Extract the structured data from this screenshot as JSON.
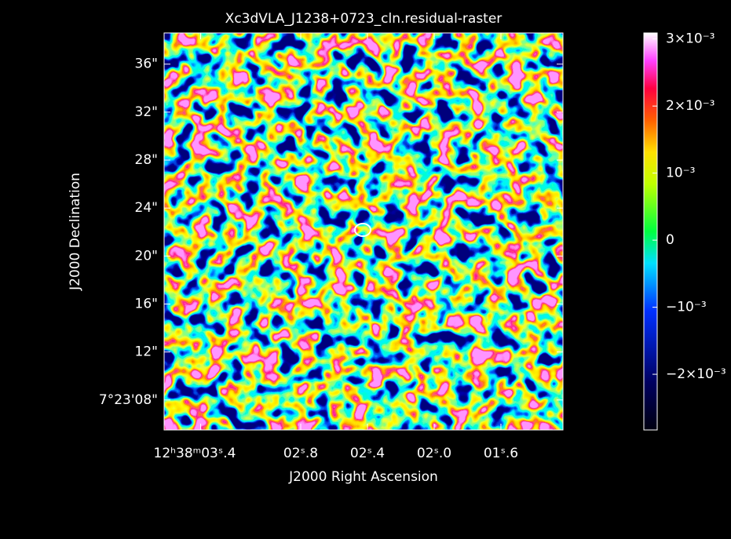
{
  "chart_data": {
    "type": "image",
    "title": "Xc3dVLA_J1238+0723_cln.residual-raster",
    "xlabel": "J2000 Right Ascension",
    "ylabel": "J2000 Declination",
    "xlim": [
      3.619,
      1.228
    ],
    "xticks": [
      {
        "value": 3.4,
        "label": "12ʰ38ᵐ03ˢ.4"
      },
      {
        "value": 2.8,
        "label": "02ˢ.8"
      },
      {
        "value": 2.4,
        "label": "02ˢ.4"
      },
      {
        "value": 2.0,
        "label": "02ˢ.0"
      },
      {
        "value": 1.6,
        "label": "01ˢ.6"
      }
    ],
    "ylim": [
      5.5,
      38.6
    ],
    "yticks": [
      {
        "value": 8,
        "label": "7°23'08\""
      },
      {
        "value": 12,
        "label": "12\""
      },
      {
        "value": 16,
        "label": "16\""
      },
      {
        "value": 20,
        "label": "20\""
      },
      {
        "value": 24,
        "label": "24\""
      },
      {
        "value": 28,
        "label": "28\""
      },
      {
        "value": 32,
        "label": "32\""
      },
      {
        "value": 36,
        "label": "36\""
      }
    ],
    "colorbar_lim": [
      -0.00283,
      0.00309
    ],
    "colorbar_ticks": [
      {
        "value": 0.003,
        "label": "3×10⁻³"
      },
      {
        "value": 0.002,
        "label": "2×10⁻³"
      },
      {
        "value": 0.001,
        "label": "10⁻³"
      },
      0,
      {
        "value": -0.001,
        "label": "−10⁻³"
      },
      {
        "value": -0.002,
        "label": "−2×10⁻³"
      }
    ]
  }
}
